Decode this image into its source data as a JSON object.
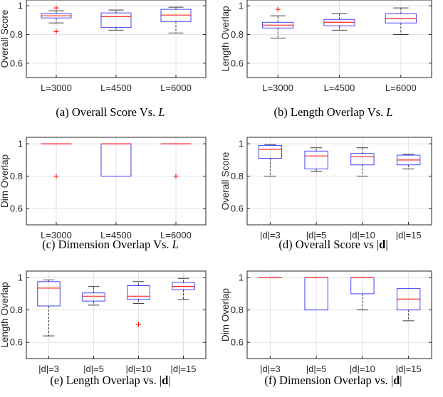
{
  "chart_data": [
    {
      "type": "box",
      "caption": {
        "prefix": "(a) Overall Score Vs. ",
        "var": "L"
      },
      "ylabel": "Overall Score",
      "categories": [
        "L=3000",
        "L=4500",
        "L=6000"
      ],
      "yticks": [
        "0.6",
        "0.8",
        "1"
      ],
      "ylim": [
        0.5,
        1.04
      ],
      "grid": true,
      "boxes": [
        {
          "min": 0.88,
          "q1": 0.915,
          "median": 0.93,
          "q3": 0.945,
          "max": 0.965,
          "outliers": [
            0.985,
            0.82
          ]
        },
        {
          "min": 0.83,
          "q1": 0.85,
          "median": 0.925,
          "q3": 0.95,
          "max": 0.97,
          "outliers": []
        },
        {
          "min": 0.81,
          "q1": 0.89,
          "median": 0.935,
          "q3": 0.975,
          "max": 0.99,
          "outliers": []
        }
      ]
    },
    {
      "type": "box",
      "caption": {
        "prefix": "(b) Length Overlap Vs. ",
        "var": "L"
      },
      "ylabel": "Length Overlap",
      "categories": [
        "L=3000",
        "L=4500",
        "L=6000"
      ],
      "yticks": [
        "0.6",
        "0.8",
        "1"
      ],
      "ylim": [
        0.5,
        1.04
      ],
      "grid": true,
      "boxes": [
        {
          "min": 0.775,
          "q1": 0.845,
          "median": 0.865,
          "q3": 0.885,
          "max": 0.93,
          "outliers": [
            0.975
          ]
        },
        {
          "min": 0.83,
          "q1": 0.86,
          "median": 0.885,
          "q3": 0.905,
          "max": 0.945,
          "outliers": []
        },
        {
          "min": 0.8,
          "q1": 0.88,
          "median": 0.91,
          "q3": 0.945,
          "max": 0.985,
          "outliers": []
        }
      ]
    },
    {
      "type": "box",
      "caption": {
        "prefix": "(c) Dimension Overlap Vs. ",
        "var": "L"
      },
      "ylabel": "Dim Overlap",
      "categories": [
        "L=3000",
        "L=4500",
        "L=6000"
      ],
      "yticks": [
        "0.6",
        "0.8",
        "1"
      ],
      "ylim": [
        0.5,
        1.04
      ],
      "grid": true,
      "boxes": [
        {
          "min": 1.0,
          "q1": 1.0,
          "median": 1.0,
          "q3": 1.0,
          "max": 1.0,
          "outliers": [
            0.8
          ]
        },
        {
          "min": 0.8,
          "q1": 0.8,
          "median": 1.0,
          "q3": 1.0,
          "max": 1.0,
          "outliers": []
        },
        {
          "min": 1.0,
          "q1": 1.0,
          "median": 1.0,
          "q3": 1.0,
          "max": 1.0,
          "outliers": [
            0.8
          ]
        }
      ]
    },
    {
      "type": "box",
      "caption": {
        "prefix": "(d) Overall Score vs ",
        "bold": "d"
      },
      "ylabel": "Overall Score",
      "categories": [
        "|d|=3",
        "|d|=5",
        "|d|=10",
        "|d|=15"
      ],
      "yticks": [
        "0.6",
        "0.8",
        "1"
      ],
      "ylim": [
        0.5,
        1.04
      ],
      "grid": true,
      "boxes": [
        {
          "min": 0.8,
          "q1": 0.91,
          "median": 0.965,
          "q3": 0.99,
          "max": 0.995,
          "outliers": []
        },
        {
          "min": 0.83,
          "q1": 0.845,
          "median": 0.925,
          "q3": 0.955,
          "max": 0.975,
          "outliers": []
        },
        {
          "min": 0.8,
          "q1": 0.87,
          "median": 0.92,
          "q3": 0.94,
          "max": 0.975,
          "outliers": []
        },
        {
          "min": 0.845,
          "q1": 0.87,
          "median": 0.9,
          "q3": 0.93,
          "max": 0.935,
          "outliers": []
        }
      ]
    },
    {
      "type": "box",
      "caption": {
        "prefix": "(e) Length Overlap vs. ",
        "bold": "d"
      },
      "ylabel": "Length Overlap",
      "categories": [
        "|d|=3",
        "|d|=5",
        "|d|=10",
        "|d|=15"
      ],
      "yticks": [
        "0.6",
        "0.8",
        "1"
      ],
      "ylim": [
        0.5,
        1.04
      ],
      "grid": true,
      "boxes": [
        {
          "min": 0.64,
          "q1": 0.825,
          "median": 0.935,
          "q3": 0.975,
          "max": 0.985,
          "outliers": []
        },
        {
          "min": 0.83,
          "q1": 0.855,
          "median": 0.885,
          "q3": 0.905,
          "max": 0.945,
          "outliers": []
        },
        {
          "min": 0.84,
          "q1": 0.865,
          "median": 0.885,
          "q3": 0.95,
          "max": 0.975,
          "outliers": [
            0.71
          ]
        },
        {
          "min": 0.865,
          "q1": 0.925,
          "median": 0.945,
          "q3": 0.97,
          "max": 0.995,
          "outliers": []
        }
      ]
    },
    {
      "type": "box",
      "caption": {
        "prefix": "(f) Dimension Overlap vs. ",
        "bold": "d"
      },
      "ylabel": "Dim Overlap",
      "categories": [
        "|d|=3",
        "|d|=5",
        "|d|=10",
        "|d|=15"
      ],
      "yticks": [
        "0.6",
        "0.8",
        "1"
      ],
      "ylim": [
        0.5,
        1.04
      ],
      "grid": true,
      "boxes": [
        {
          "min": 1.0,
          "q1": 1.0,
          "median": 1.0,
          "q3": 1.0,
          "max": 1.0,
          "outliers": []
        },
        {
          "min": 0.8,
          "q1": 0.8,
          "median": 1.0,
          "q3": 1.0,
          "max": 1.0,
          "outliers": []
        },
        {
          "min": 0.8,
          "q1": 0.9,
          "median": 1.0,
          "q3": 1.0,
          "max": 1.0,
          "outliers": []
        },
        {
          "min": 0.733,
          "q1": 0.8,
          "median": 0.867,
          "q3": 0.933,
          "max": 0.933,
          "outliers": []
        }
      ]
    }
  ],
  "colors": {
    "box": "#4040ff",
    "median": "#ff2020",
    "whisker": "#3a3a3a",
    "outlier": "#ff0000",
    "grid": "#e2e2e2",
    "axis": "#262626"
  }
}
